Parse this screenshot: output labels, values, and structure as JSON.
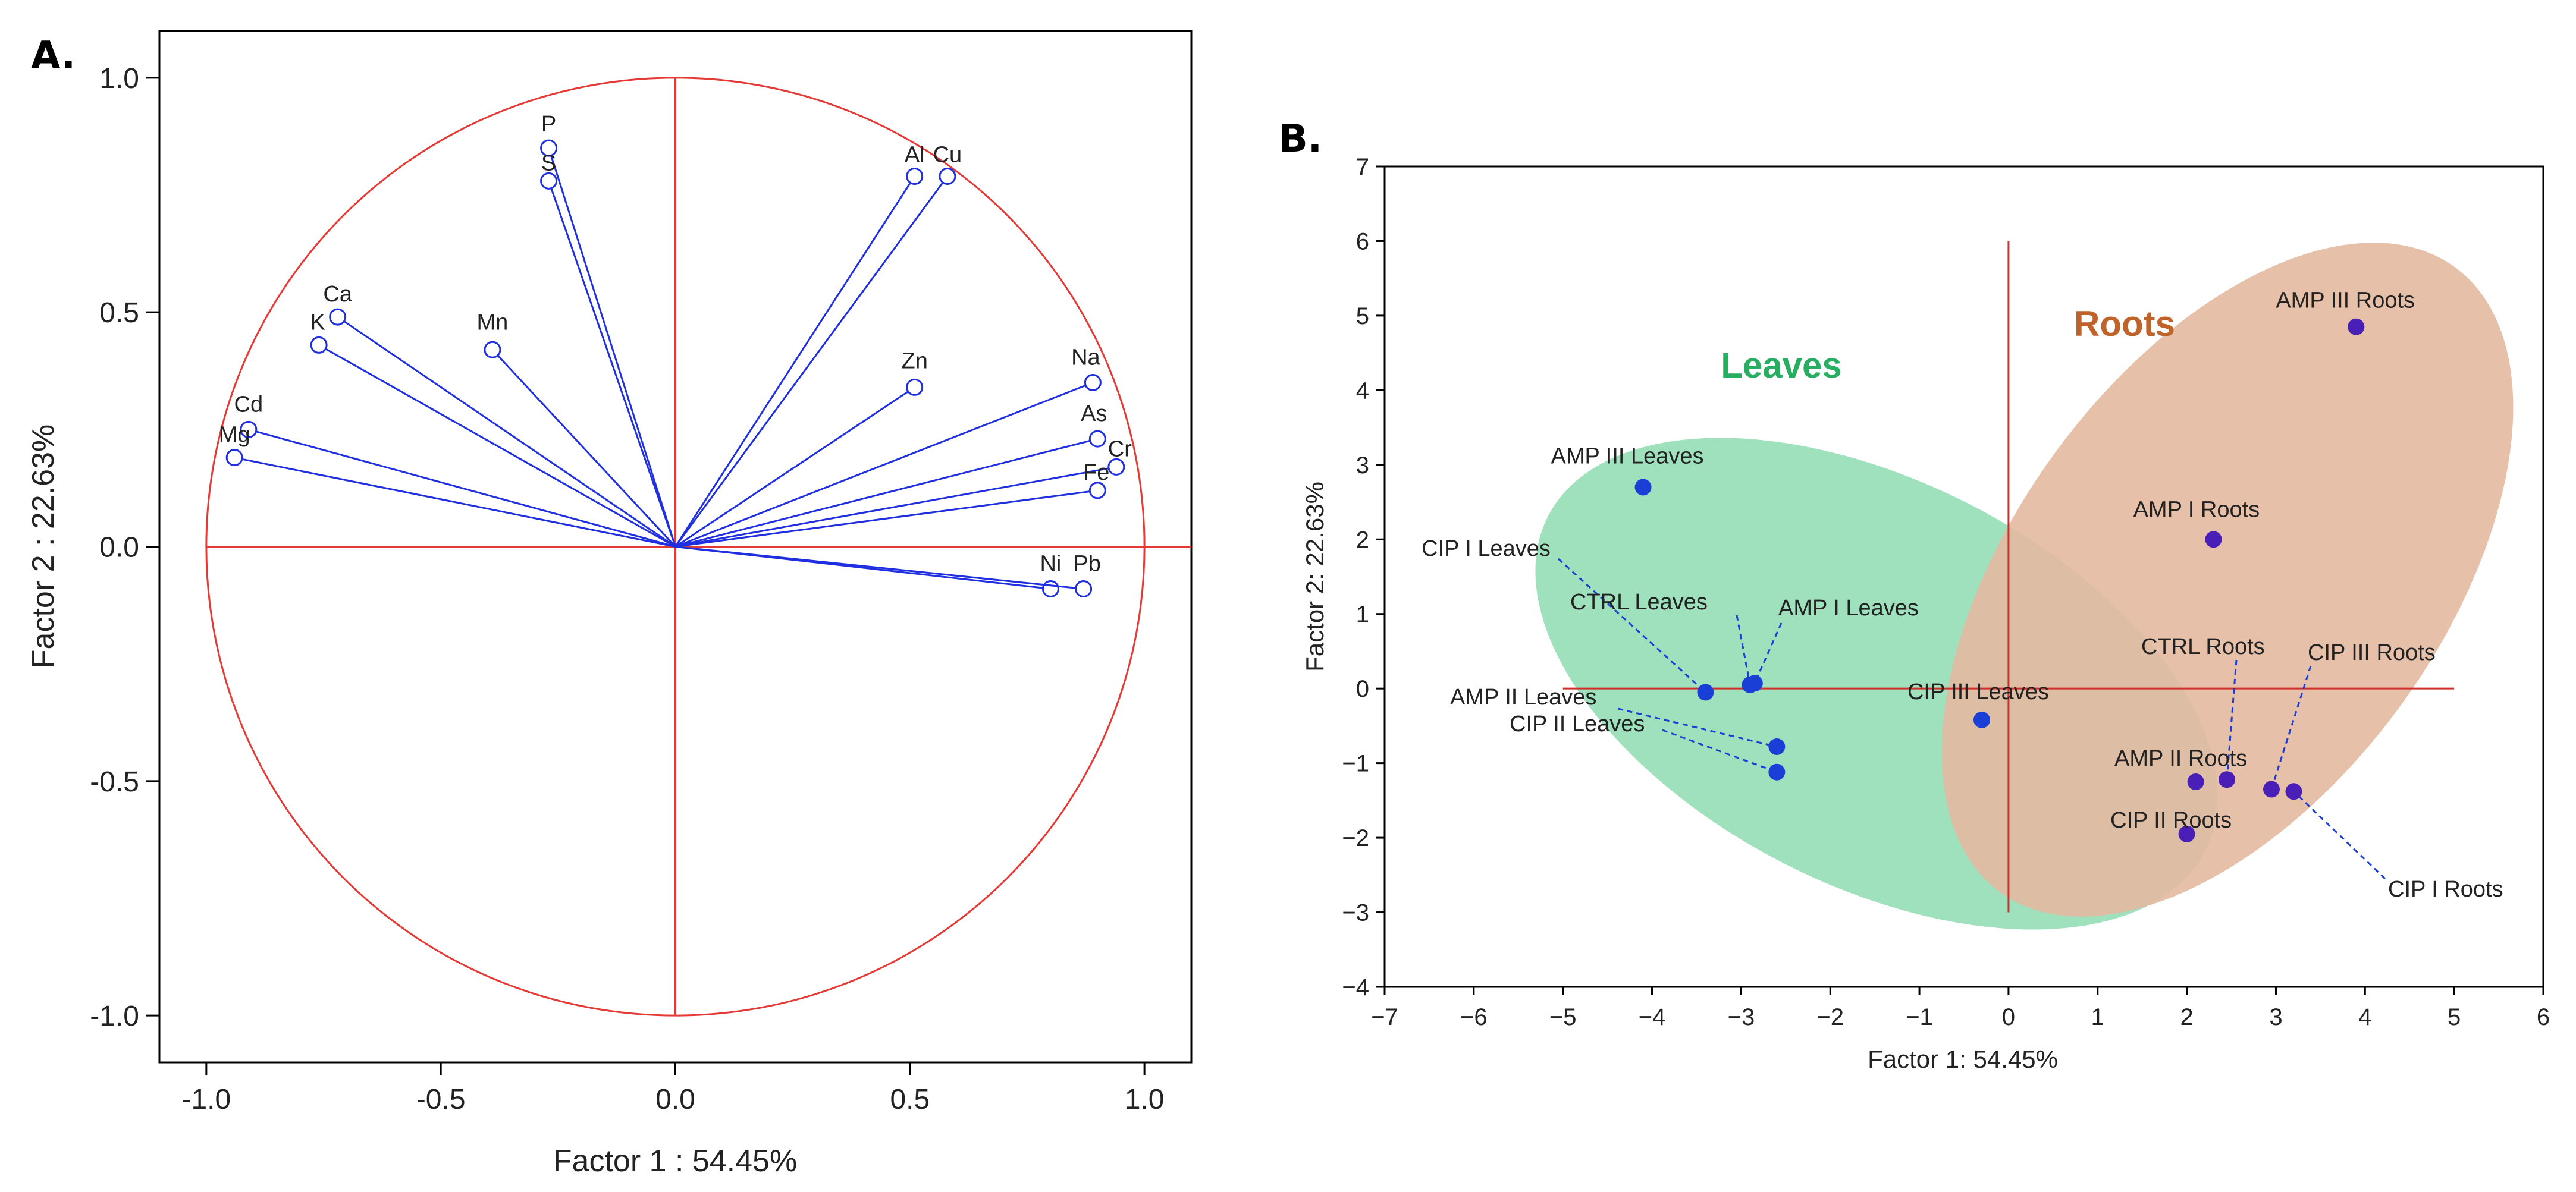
{
  "chart_data": [
    {
      "panel": "A.",
      "type": "scatter",
      "subtype": "loading-vectors",
      "xlabel": "Factor 1 : 54.45%",
      "ylabel": "Factor 2 : 22.63%",
      "xlim": [
        -1.1,
        1.1
      ],
      "ylim": [
        -1.1,
        1.1
      ],
      "xticks": [
        "-1.0",
        "-0.5",
        "0.0",
        "0.5",
        "1.0"
      ],
      "yticks": [
        "1.0",
        "0.5",
        "0.0",
        "-0.5",
        "-1.0"
      ],
      "unit_circle": true,
      "points": [
        {
          "label": "P",
          "x": -0.27,
          "y": 0.85
        },
        {
          "label": "S",
          "x": -0.27,
          "y": 0.78
        },
        {
          "label": "Al",
          "x": 0.51,
          "y": 0.79
        },
        {
          "label": "Cu",
          "x": 0.58,
          "y": 0.79
        },
        {
          "label": "Ca",
          "x": -0.72,
          "y": 0.49
        },
        {
          "label": "K",
          "x": -0.76,
          "y": 0.43
        },
        {
          "label": "Mn",
          "x": -0.39,
          "y": 0.42
        },
        {
          "label": "Zn",
          "x": 0.51,
          "y": 0.34
        },
        {
          "label": "Na",
          "x": 0.89,
          "y": 0.35
        },
        {
          "label": "Cd",
          "x": -0.91,
          "y": 0.25
        },
        {
          "label": "Mg",
          "x": -0.94,
          "y": 0.19
        },
        {
          "label": "As",
          "x": 0.9,
          "y": 0.23
        },
        {
          "label": "Cr",
          "x": 0.94,
          "y": 0.17
        },
        {
          "label": "Fe",
          "x": 0.9,
          "y": 0.12
        },
        {
          "label": "Ni",
          "x": 0.8,
          "y": -0.09
        },
        {
          "label": "Pb",
          "x": 0.87,
          "y": -0.09
        }
      ]
    },
    {
      "panel": "B.",
      "type": "scatter",
      "xlabel": "Factor 1: 54.45%",
      "ylabel": "Factor 2: 22.63%",
      "xlim": [
        -7,
        6
      ],
      "ylim": [
        -4,
        7
      ],
      "xticks": [
        "−7",
        "−6",
        "−5",
        "−4",
        "−3",
        "−2",
        "−1",
        "0",
        "1",
        "2",
        "3",
        "4",
        "5",
        "6"
      ],
      "yticks": [
        "7",
        "6",
        "5",
        "4",
        "3",
        "2",
        "1",
        "0",
        "−1",
        "−2",
        "−3",
        "−4"
      ],
      "groups": [
        {
          "name": "Leaves",
          "color": "#2ecc71"
        },
        {
          "name": "Roots",
          "color": "#cd5c1f"
        }
      ],
      "points": [
        {
          "label": "AMP III Leaves",
          "x": -4.1,
          "y": 2.7,
          "group": "Leaves"
        },
        {
          "label": "CIP I Leaves",
          "x": -3.4,
          "y": -0.05,
          "group": "Leaves"
        },
        {
          "label": "CTRL Leaves",
          "x": -2.9,
          "y": 0.05,
          "group": "Leaves"
        },
        {
          "label": "AMP I Leaves",
          "x": -2.85,
          "y": 0.07,
          "group": "Leaves"
        },
        {
          "label": "AMP II Leaves",
          "x": -2.6,
          "y": -0.78,
          "group": "Leaves"
        },
        {
          "label": "CIP II Leaves",
          "x": -2.6,
          "y": -1.12,
          "group": "Leaves"
        },
        {
          "label": "CIP III Leaves",
          "x": -0.3,
          "y": -0.42,
          "group": "Leaves"
        },
        {
          "label": "AMP III Roots",
          "x": 3.9,
          "y": 4.85,
          "group": "Roots"
        },
        {
          "label": "AMP I Roots",
          "x": 2.3,
          "y": 2.0,
          "group": "Roots"
        },
        {
          "label": "AMP II Roots",
          "x": 2.1,
          "y": -1.25,
          "group": "Roots"
        },
        {
          "label": "CTRL Roots",
          "x": 2.45,
          "y": -1.22,
          "group": "Roots"
        },
        {
          "label": "CIP III Roots",
          "x": 2.95,
          "y": -1.35,
          "group": "Roots"
        },
        {
          "label": "CIP I Roots",
          "x": 3.2,
          "y": -1.38,
          "group": "Roots"
        },
        {
          "label": "CIP II Roots",
          "x": 2.0,
          "y": -1.95,
          "group": "Roots"
        }
      ]
    }
  ]
}
